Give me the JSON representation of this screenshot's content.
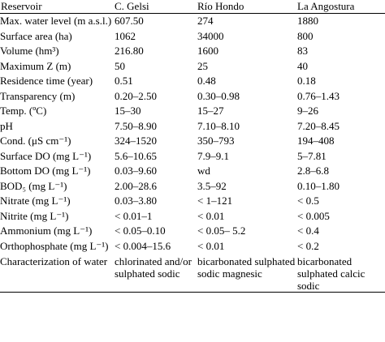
{
  "table": {
    "headers": [
      "Reservoir",
      "C. Gelsi",
      "Río Hondo",
      "La Angostura"
    ],
    "rows": [
      {
        "param": "Max. water level (m a.s.l.)",
        "values": [
          "607.50",
          "274",
          "1880"
        ]
      },
      {
        "param": "Surface area (ha)",
        "values": [
          "1062",
          "34000",
          "800"
        ]
      },
      {
        "param": "Volume (hm³)",
        "values": [
          "216.80",
          "1600",
          "83"
        ]
      },
      {
        "param": "Maximum Z (m)",
        "values": [
          "50",
          "25",
          "40"
        ]
      },
      {
        "param": "Residence time (year)",
        "values": [
          "0.51",
          "0.48",
          "0.18"
        ]
      },
      {
        "param": "Transparency (m)",
        "values": [
          "0.20–2.50",
          "0.30–0.98",
          "0.76–1.43"
        ]
      },
      {
        "param": "Temp. (ºC)",
        "values": [
          "15–30",
          "15–27",
          "9–26"
        ]
      },
      {
        "param": "pH",
        "values": [
          "7.50–8.90",
          "7.10–8.10",
          "7.20–8.45"
        ]
      },
      {
        "param": "Cond. (μS cm⁻¹)",
        "values": [
          "324–1520",
          "350–793",
          "194–408"
        ]
      },
      {
        "param": "Surface DO (mg L⁻¹)",
        "values": [
          "5.6–10.65",
          "7.9–9.1",
          "5–7.81"
        ]
      },
      {
        "param": "Bottom DO (mg L⁻¹)",
        "values": [
          "0.03–9.60",
          "wd",
          "2.8–6.8"
        ]
      },
      {
        "param": "BOD₅ (mg L⁻¹)",
        "values": [
          "2.00–28.6",
          "3.5–92",
          "0.10–1.80"
        ]
      },
      {
        "param": "Nitrate (mg L⁻¹)",
        "values": [
          "0.03–3.80",
          "< 1–121",
          "< 0.5"
        ]
      },
      {
        "param": "Nitrite (mg L⁻¹)",
        "values": [
          "< 0.01–1",
          "< 0.01",
          "< 0.005"
        ]
      },
      {
        "param": "Ammonium (mg L⁻¹)",
        "values": [
          "< 0.05–0.10",
          "< 0.05– 5.2",
          "< 0.4"
        ]
      },
      {
        "param": "Orthophosphate (mg L⁻¹)",
        "values": [
          "< 0.004–15.6",
          "< 0.01",
          "< 0.2"
        ]
      },
      {
        "param": "Characterization of water",
        "values": [
          "chlorinated and/or sulphated sodic",
          "bicarbonated sulphated sodic magnesic",
          "bicarbonated sulphated calcic sodic"
        ]
      }
    ]
  }
}
